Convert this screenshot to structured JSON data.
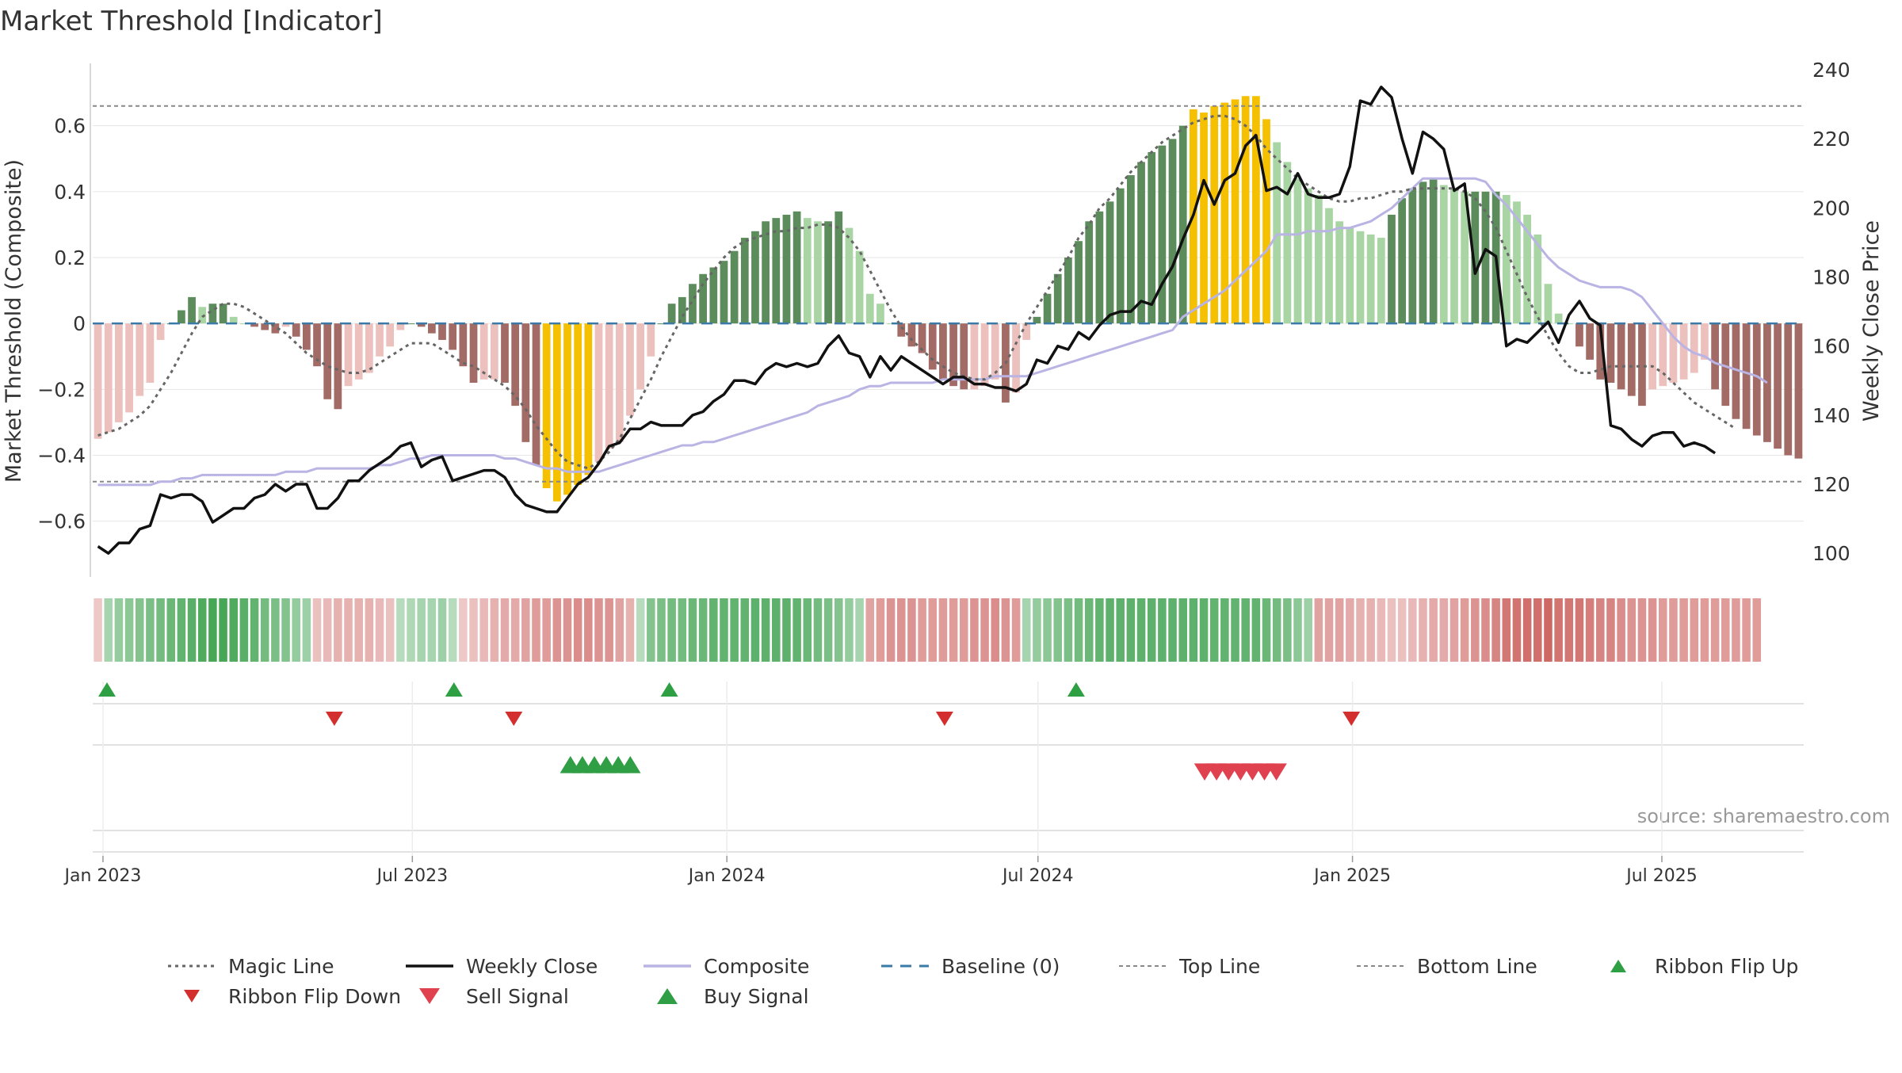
{
  "chart_data": {
    "type": "bar",
    "title": "Market Threshold [Indicator]",
    "ylabel": "Market Threshold (Composite)",
    "y2label": "Weekly Close Price",
    "source": "source: sharemaestro.com",
    "ylim": [
      -0.75,
      0.77
    ],
    "y2lim": [
      95,
      240
    ],
    "yticks": [
      -0.6,
      -0.4,
      -0.2,
      0,
      0.2,
      0.4,
      0.6
    ],
    "ytick_labels": [
      "−0.6",
      "−0.4",
      "−0.2",
      "0",
      "0.2",
      "0.4",
      "0.6"
    ],
    "y2ticks": [
      100,
      120,
      140,
      160,
      180,
      200,
      220,
      240
    ],
    "x_start": "2022-12-26",
    "x_end": "2025-09-22",
    "x_tick_dates": [
      "2023-01-01",
      "2023-07-01",
      "2024-01-01",
      "2024-07-01",
      "2025-01-01",
      "2025-07-01"
    ],
    "x_tick_labels": [
      "Jan 2023",
      "Jul 2023",
      "Jan 2024",
      "Jul 2024",
      "Jan 2025",
      "Jul 2025"
    ],
    "top_line": 0.66,
    "bottom_line": -0.48,
    "composite_bars": [
      -0.35,
      -0.33,
      -0.3,
      -0.27,
      -0.22,
      -0.18,
      -0.05,
      0,
      0.04,
      0.08,
      0.05,
      0.06,
      0.06,
      0.02,
      0,
      -0.01,
      -0.02,
      -0.03,
      -0.01,
      -0.04,
      -0.08,
      -0.13,
      -0.23,
      -0.26,
      -0.19,
      -0.17,
      -0.15,
      -0.1,
      -0.07,
      -0.02,
      0,
      -0.01,
      -0.03,
      -0.05,
      -0.08,
      -0.13,
      -0.18,
      -0.17,
      -0.17,
      -0.18,
      -0.25,
      -0.36,
      -0.43,
      -0.5,
      -0.54,
      -0.52,
      -0.49,
      -0.46,
      -0.42,
      -0.38,
      -0.36,
      -0.28,
      -0.2,
      -0.1,
      0,
      0.06,
      0.08,
      0.12,
      0.15,
      0.17,
      0.19,
      0.22,
      0.26,
      0.28,
      0.31,
      0.32,
      0.33,
      0.34,
      0.32,
      0.31,
      0.31,
      0.34,
      0.29,
      0.22,
      0.09,
      0.06,
      0,
      -0.04,
      -0.07,
      -0.09,
      -0.14,
      -0.17,
      -0.19,
      -0.2,
      -0.2,
      -0.19,
      -0.17,
      -0.24,
      -0.21,
      -0.05,
      0.02,
      0.09,
      0.15,
      0.2,
      0.25,
      0.31,
      0.34,
      0.37,
      0.41,
      0.45,
      0.49,
      0.52,
      0.54,
      0.56,
      0.6,
      0.65,
      0.64,
      0.66,
      0.67,
      0.68,
      0.69,
      0.69,
      0.62,
      0.55,
      0.49,
      0.44,
      0.41,
      0.39,
      0.35,
      0.31,
      0.29,
      0.28,
      0.27,
      0.26,
      0.33,
      0.38,
      0.41,
      0.43,
      0.44,
      0.42,
      0.41,
      0.4,
      0.4,
      0.4,
      0.4,
      0.39,
      0.37,
      0.33,
      0.27,
      0.12,
      0.03,
      0,
      -0.07,
      -0.11,
      -0.17,
      -0.18,
      -0.2,
      -0.22,
      -0.25,
      -0.2,
      -0.19,
      -0.18,
      -0.17,
      -0.15,
      -0.11,
      -0.2,
      -0.25,
      -0.29,
      -0.32,
      -0.34,
      -0.36,
      -0.38,
      -0.4,
      -0.41
    ],
    "weekly_close": [
      102,
      100,
      103,
      103,
      107,
      108,
      117,
      116,
      117,
      117,
      115,
      109,
      111,
      113,
      113,
      116,
      117,
      120,
      118,
      120,
      120,
      113,
      113,
      116,
      121,
      121,
      124,
      126,
      128,
      131,
      132,
      125,
      127,
      128,
      121,
      122,
      123,
      124,
      124,
      122,
      117,
      114,
      113,
      112,
      112,
      116,
      120,
      122,
      126,
      131,
      132,
      136,
      136,
      138,
      137,
      137,
      137,
      140,
      141,
      144,
      146,
      150,
      150,
      149,
      153,
      155,
      154,
      155,
      154,
      155,
      160,
      163,
      158,
      157,
      151,
      157,
      153,
      157,
      155,
      153,
      151,
      149,
      151,
      151,
      149,
      149,
      148,
      148,
      147,
      149,
      156,
      155,
      160,
      159,
      164,
      162,
      166,
      169,
      170,
      170,
      173,
      172,
      178,
      183,
      191,
      198,
      208,
      201,
      208,
      210,
      218,
      221,
      205,
      206,
      204,
      210,
      204,
      203,
      203,
      204,
      212,
      231,
      230,
      235,
      232,
      220,
      210,
      222,
      220,
      217,
      205,
      207,
      181,
      188,
      186,
      160,
      162,
      161,
      164,
      167,
      161,
      169,
      173,
      168,
      166,
      137,
      136,
      133,
      131,
      134,
      135,
      135,
      131,
      132,
      131,
      129
    ],
    "composite_line": [
      -0.49,
      -0.49,
      -0.49,
      -0.49,
      -0.49,
      -0.49,
      -0.48,
      -0.48,
      -0.47,
      -0.47,
      -0.46,
      -0.46,
      -0.46,
      -0.46,
      -0.46,
      -0.46,
      -0.46,
      -0.46,
      -0.45,
      -0.45,
      -0.45,
      -0.44,
      -0.44,
      -0.44,
      -0.44,
      -0.44,
      -0.44,
      -0.43,
      -0.43,
      -0.42,
      -0.41,
      -0.41,
      -0.4,
      -0.4,
      -0.4,
      -0.4,
      -0.4,
      -0.4,
      -0.4,
      -0.41,
      -0.41,
      -0.42,
      -0.43,
      -0.44,
      -0.44,
      -0.45,
      -0.45,
      -0.45,
      -0.45,
      -0.44,
      -0.43,
      -0.42,
      -0.41,
      -0.4,
      -0.39,
      -0.38,
      -0.37,
      -0.37,
      -0.36,
      -0.36,
      -0.35,
      -0.34,
      -0.33,
      -0.32,
      -0.31,
      -0.3,
      -0.29,
      -0.28,
      -0.27,
      -0.25,
      -0.24,
      -0.23,
      -0.22,
      -0.2,
      -0.19,
      -0.19,
      -0.18,
      -0.18,
      -0.18,
      -0.18,
      -0.18,
      -0.17,
      -0.17,
      -0.17,
      -0.17,
      -0.17,
      -0.16,
      -0.16,
      -0.16,
      -0.16,
      -0.15,
      -0.14,
      -0.13,
      -0.12,
      -0.11,
      -0.1,
      -0.09,
      -0.08,
      -0.07,
      -0.06,
      -0.05,
      -0.04,
      -0.03,
      -0.02,
      0.02,
      0.04,
      0.06,
      0.08,
      0.1,
      0.13,
      0.16,
      0.19,
      0.22,
      0.27,
      0.27,
      0.27,
      0.28,
      0.28,
      0.28,
      0.29,
      0.29,
      0.3,
      0.31,
      0.33,
      0.35,
      0.38,
      0.41,
      0.44,
      0.44,
      0.44,
      0.44,
      0.44,
      0.44,
      0.43,
      0.39,
      0.36,
      0.32,
      0.28,
      0.24,
      0.2,
      0.17,
      0.15,
      0.13,
      0.12,
      0.11,
      0.11,
      0.11,
      0.1,
      0.08,
      0.04,
      0,
      -0.04,
      -0.07,
      -0.09,
      -0.1,
      -0.12,
      -0.13,
      -0.14,
      -0.15,
      -0.16,
      -0.18
    ],
    "magic_line": [
      -0.34,
      -0.33,
      -0.32,
      -0.3,
      -0.28,
      -0.25,
      -0.2,
      -0.15,
      -0.09,
      -0.03,
      0.02,
      0.04,
      0.06,
      0.06,
      0.05,
      0.03,
      0.01,
      -0.01,
      -0.03,
      -0.06,
      -0.09,
      -0.11,
      -0.13,
      -0.14,
      -0.15,
      -0.15,
      -0.14,
      -0.12,
      -0.1,
      -0.08,
      -0.06,
      -0.06,
      -0.06,
      -0.08,
      -0.1,
      -0.12,
      -0.13,
      -0.15,
      -0.17,
      -0.19,
      -0.22,
      -0.26,
      -0.31,
      -0.35,
      -0.39,
      -0.42,
      -0.43,
      -0.44,
      -0.42,
      -0.39,
      -0.35,
      -0.29,
      -0.23,
      -0.17,
      -0.1,
      -0.04,
      0.02,
      0.07,
      0.12,
      0.16,
      0.2,
      0.23,
      0.25,
      0.26,
      0.27,
      0.28,
      0.28,
      0.29,
      0.29,
      0.3,
      0.3,
      0.29,
      0.26,
      0.22,
      0.16,
      0.1,
      0.04,
      -0.01,
      -0.05,
      -0.08,
      -0.11,
      -0.13,
      -0.15,
      -0.16,
      -0.17,
      -0.17,
      -0.15,
      -0.12,
      -0.06,
      0,
      0.05,
      0.1,
      0.15,
      0.2,
      0.26,
      0.3,
      0.35,
      0.38,
      0.42,
      0.46,
      0.49,
      0.52,
      0.55,
      0.57,
      0.59,
      0.61,
      0.62,
      0.63,
      0.63,
      0.62,
      0.6,
      0.57,
      0.53,
      0.5,
      0.47,
      0.44,
      0.42,
      0.4,
      0.38,
      0.37,
      0.37,
      0.38,
      0.38,
      0.39,
      0.4,
      0.4,
      0.41,
      0.41,
      0.41,
      0.41,
      0.41,
      0.4,
      0.38,
      0.34,
      0.29,
      0.22,
      0.15,
      0.08,
      0.02,
      -0.04,
      -0.09,
      -0.13,
      -0.15,
      -0.15,
      -0.14,
      -0.13,
      -0.13,
      -0.13,
      -0.13,
      -0.13,
      -0.15,
      -0.18,
      -0.21,
      -0.24,
      -0.26,
      -0.28,
      -0.3,
      -0.32
    ],
    "ribbon": [
      -0.15,
      0.3,
      0.4,
      0.45,
      0.5,
      0.55,
      0.6,
      0.65,
      0.7,
      0.75,
      0.8,
      0.85,
      0.85,
      0.8,
      0.75,
      0.7,
      0.6,
      0.55,
      0.5,
      0.4,
      0.35,
      -0.2,
      -0.25,
      -0.3,
      -0.3,
      -0.3,
      -0.3,
      -0.25,
      -0.2,
      0.2,
      0.25,
      0.3,
      0.3,
      0.35,
      0.2,
      -0.15,
      -0.2,
      -0.25,
      -0.3,
      -0.35,
      -0.35,
      -0.4,
      -0.45,
      -0.45,
      -0.5,
      -0.5,
      -0.55,
      -0.55,
      -0.5,
      -0.5,
      -0.4,
      -0.3,
      0.2,
      0.5,
      0.55,
      0.6,
      0.6,
      0.65,
      0.65,
      0.7,
      0.7,
      0.7,
      0.7,
      0.72,
      0.72,
      0.72,
      0.72,
      0.7,
      0.65,
      0.6,
      0.55,
      0.5,
      0.4,
      0.3,
      -0.4,
      -0.45,
      -0.5,
      -0.5,
      -0.5,
      -0.45,
      -0.45,
      -0.45,
      -0.45,
      -0.45,
      -0.5,
      -0.5,
      -0.55,
      -0.5,
      -0.45,
      0.3,
      0.4,
      0.45,
      0.5,
      0.55,
      0.6,
      0.65,
      0.7,
      0.72,
      0.72,
      0.72,
      0.72,
      0.72,
      0.72,
      0.72,
      0.72,
      0.72,
      0.72,
      0.7,
      0.7,
      0.7,
      0.7,
      0.7,
      0.65,
      0.6,
      0.55,
      0.45,
      0.35,
      -0.4,
      -0.4,
      -0.4,
      -0.35,
      -0.3,
      -0.3,
      -0.25,
      -0.2,
      -0.2,
      -0.25,
      -0.3,
      -0.35,
      -0.35,
      -0.4,
      -0.45,
      -0.5,
      -0.55,
      -0.6,
      -0.7,
      -0.72,
      -0.75,
      -0.75,
      -0.8,
      -0.72,
      -0.7,
      -0.7,
      -0.65,
      -0.6,
      -0.6,
      -0.55,
      -0.5,
      -0.5,
      -0.5,
      -0.45,
      -0.45,
      -0.45,
      -0.45,
      -0.45,
      -0.45,
      -0.45,
      -0.45,
      -0.45,
      -0.45
    ],
    "ribbon_flip_up": [
      "2022-12-26",
      "2023-07-17",
      "2023-11-20",
      "2024-07-15"
    ],
    "ribbon_flip_down": [
      "2023-05-08",
      "2023-08-21",
      "2024-04-29",
      "2024-12-23"
    ],
    "buy_signal": [
      "2023-09-25",
      "2023-10-02",
      "2023-10-09",
      "2023-10-16",
      "2023-10-23",
      "2023-10-30"
    ],
    "sell_signal": [
      "2024-09-30",
      "2024-10-07",
      "2024-10-14",
      "2024-10-21",
      "2024-10-28",
      "2024-11-04",
      "2024-11-11"
    ],
    "legend": [
      "Magic Line",
      "Weekly Close",
      "Composite",
      "Baseline (0)",
      "Top Line",
      "Bottom Line",
      "Ribbon Flip Up",
      "Ribbon Flip Down",
      "Sell Signal",
      "Buy Signal"
    ],
    "legend_placement": "bottom",
    "grid": true,
    "colors": {
      "bull_strong": "#5c8c5c",
      "bull_weak": "#a9d5a4",
      "bear_strong": "#a26b66",
      "bear_weak": "#ecc0bc",
      "extreme": "#f5c000",
      "weekly_close": "#111111",
      "composite_line": "#b9b4e4",
      "magic_line": "#666666",
      "baseline": "#3a7aa8",
      "threshold": "#888888",
      "flip_up": "#2ea043",
      "flip_down": "#d32f2f",
      "sell": "#e0414e",
      "buy": "#2f9e44"
    }
  }
}
